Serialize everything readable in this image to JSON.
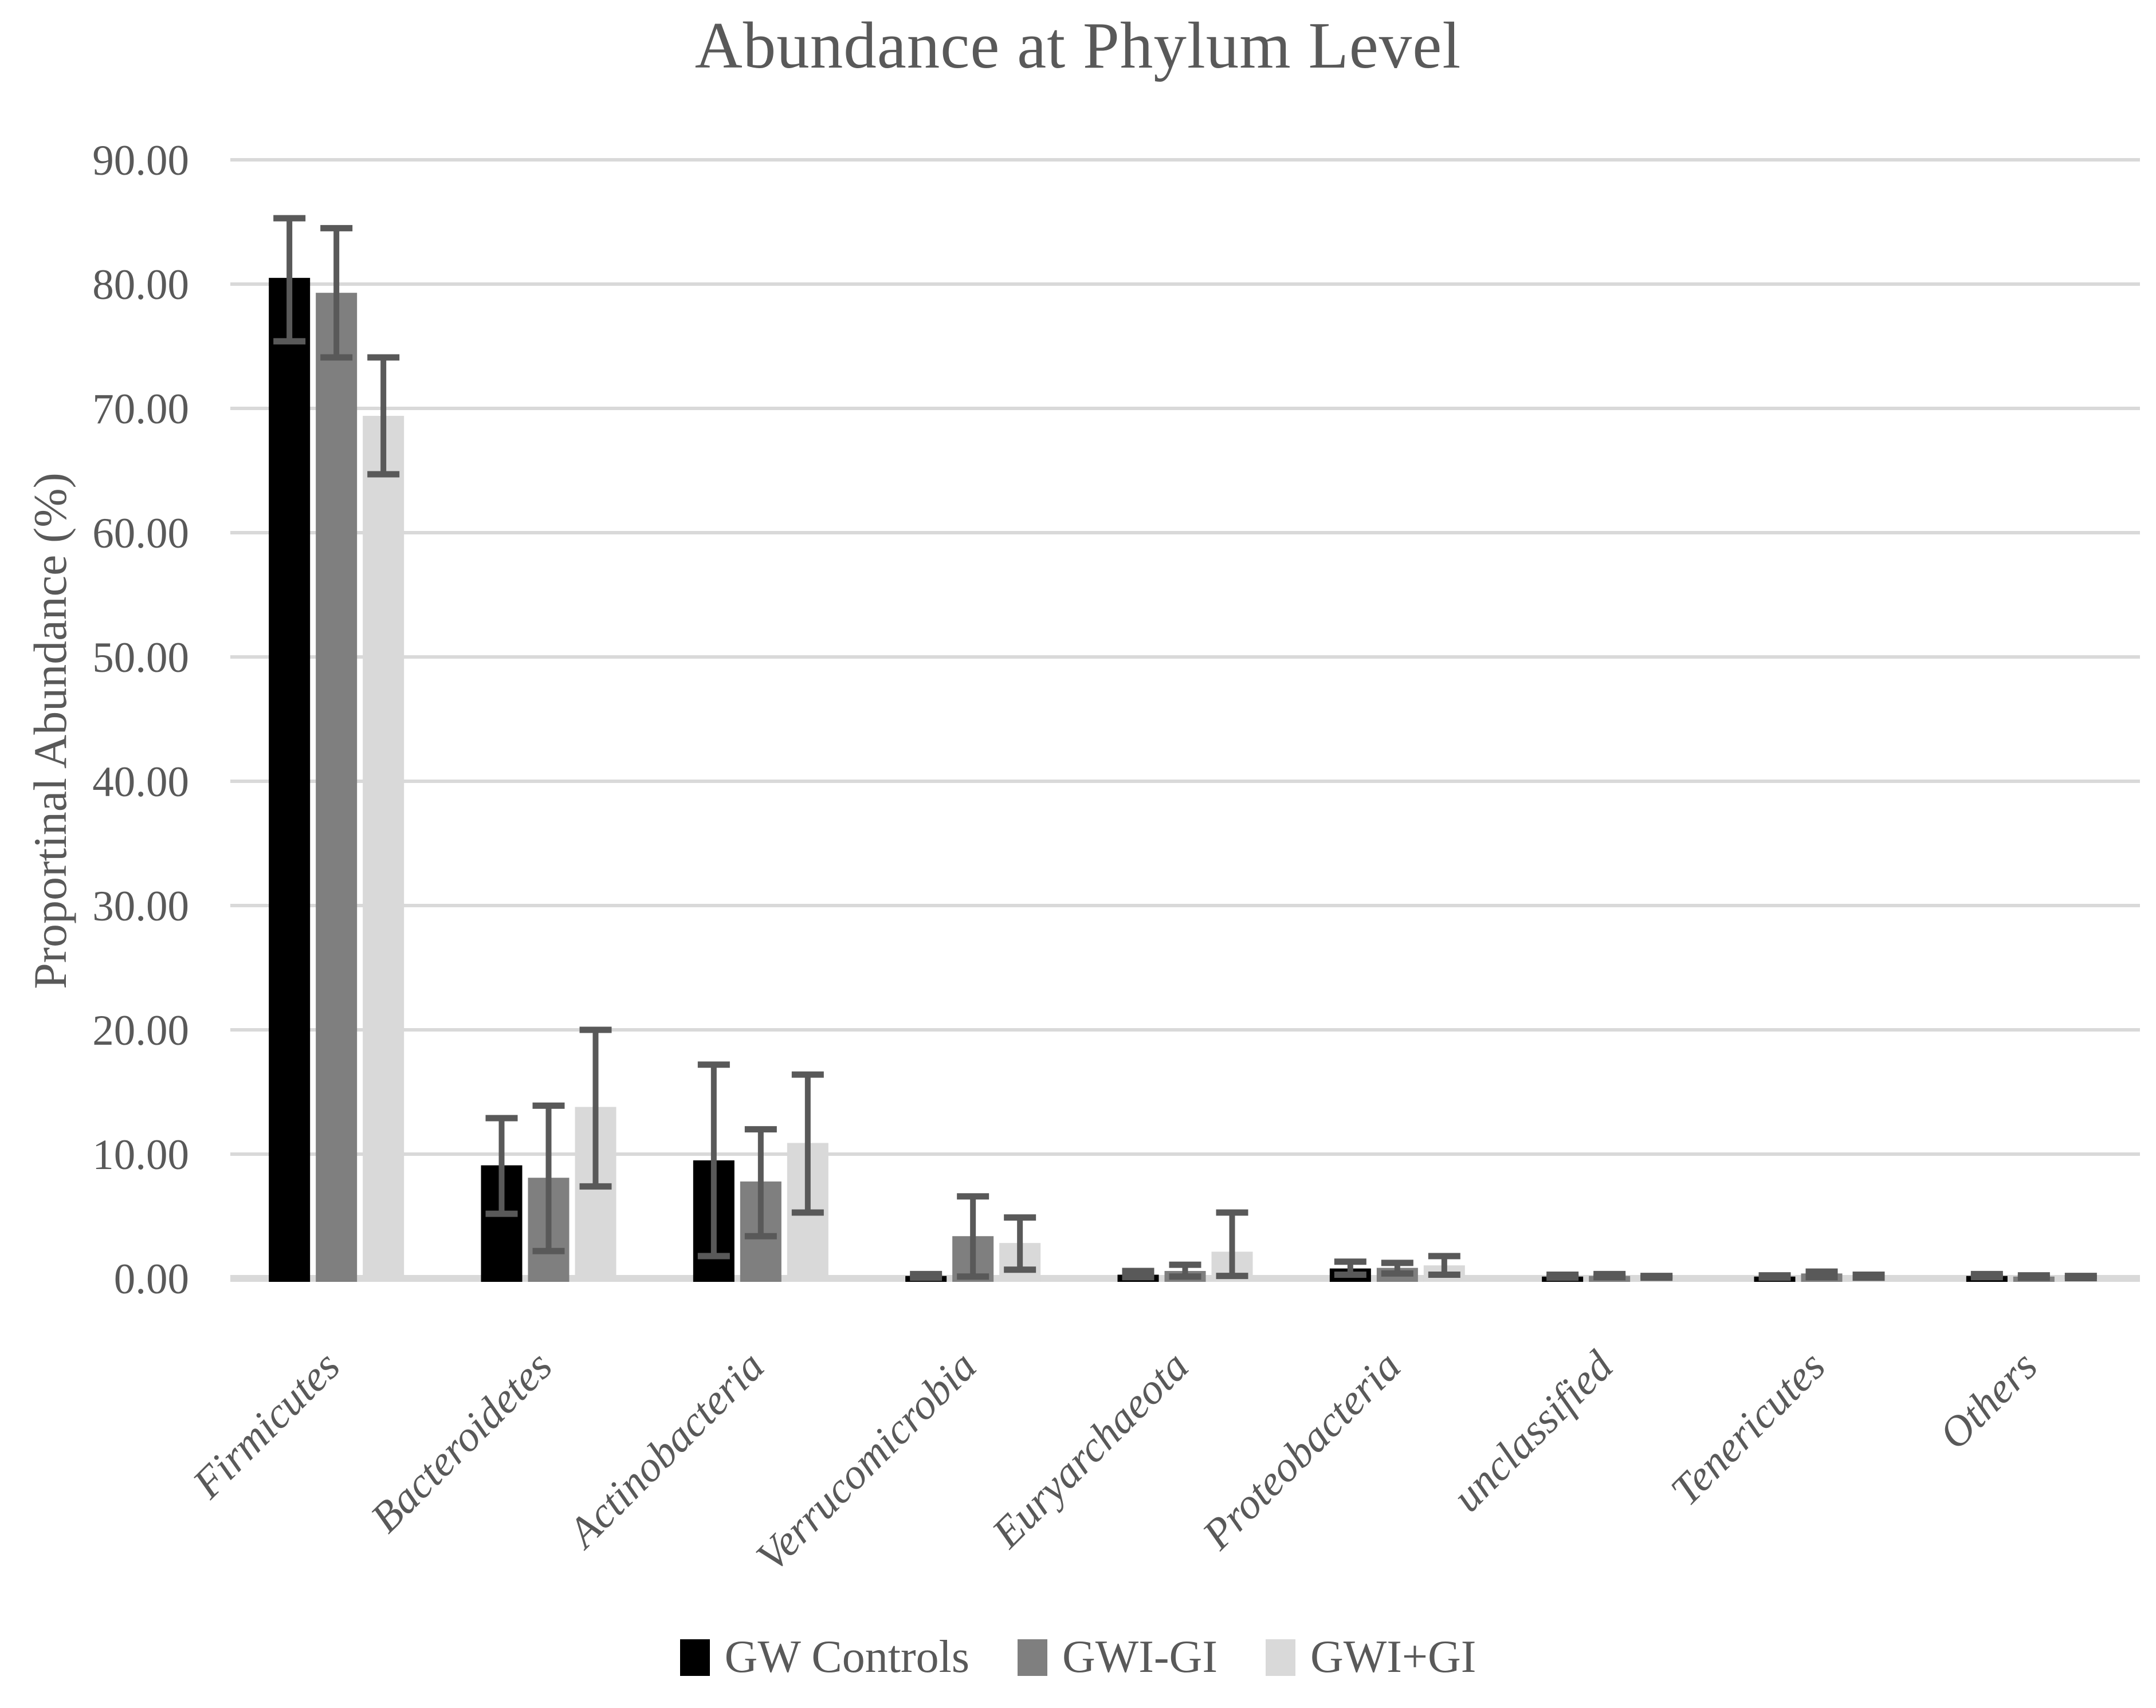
{
  "title": "Abundance at Phylum Level",
  "y_axis": {
    "label": "Proportinal Abundance (%)",
    "tick_labels": [
      "0.00",
      "10.00",
      "20.00",
      "30.00",
      "40.00",
      "50.00",
      "60.00",
      "70.00",
      "80.00",
      "90.00"
    ]
  },
  "colors": {
    "text": "#595959",
    "gridline": "#d9d9d9",
    "axis_line": "#d9d9d9",
    "error_bar": "#595959",
    "background": "#ffffff"
  },
  "chart_data": {
    "type": "bar",
    "title": "Abundance at Phylum Level",
    "xlabel": "",
    "ylabel": "Proportinal Abundance (%)",
    "ylim": [
      0,
      90
    ],
    "ytick_step": 10,
    "grid": true,
    "legend_position": "bottom",
    "error_bars": true,
    "categories": [
      "Firmicutes",
      "Bacteroidetes",
      "Actinobacteria",
      "Verrucomicrobia",
      "Euryarchaeota",
      "Proteobacteria",
      "unclassified",
      "Tenericutes",
      "Others"
    ],
    "series": [
      {
        "name": "GW Controls",
        "color": "#000000",
        "values": [
          80.5,
          9.1,
          9.5,
          0.2,
          0.3,
          0.8,
          0.15,
          0.15,
          0.2
        ],
        "err_lo": [
          75.4,
          5.2,
          1.8,
          0.05,
          0.1,
          0.3,
          0.05,
          0.05,
          0.1
        ],
        "err_hi": [
          85.3,
          12.9,
          17.2,
          0.35,
          0.6,
          1.35,
          0.3,
          0.25,
          0.35
        ]
      },
      {
        "name": "GWI-GI",
        "color": "#7f7f7f",
        "values": [
          79.3,
          8.1,
          7.8,
          3.4,
          0.6,
          0.85,
          0.2,
          0.4,
          0.15
        ],
        "err_lo": [
          74.1,
          2.2,
          3.4,
          0.15,
          0.15,
          0.4,
          0.1,
          0.1,
          0.05
        ],
        "err_hi": [
          84.5,
          13.9,
          12.0,
          6.6,
          1.1,
          1.25,
          0.35,
          0.55,
          0.25
        ]
      },
      {
        "name": "GWI+GI",
        "color": "#d9d9d9",
        "values": [
          69.4,
          13.8,
          10.9,
          2.85,
          2.15,
          1.05,
          0.1,
          0.15,
          0.1
        ],
        "err_lo": [
          64.7,
          7.4,
          5.3,
          0.7,
          0.2,
          0.3,
          0.05,
          0.05,
          0.02
        ],
        "err_hi": [
          74.1,
          20.0,
          16.4,
          4.9,
          5.3,
          1.8,
          0.2,
          0.3,
          0.2
        ]
      }
    ]
  }
}
